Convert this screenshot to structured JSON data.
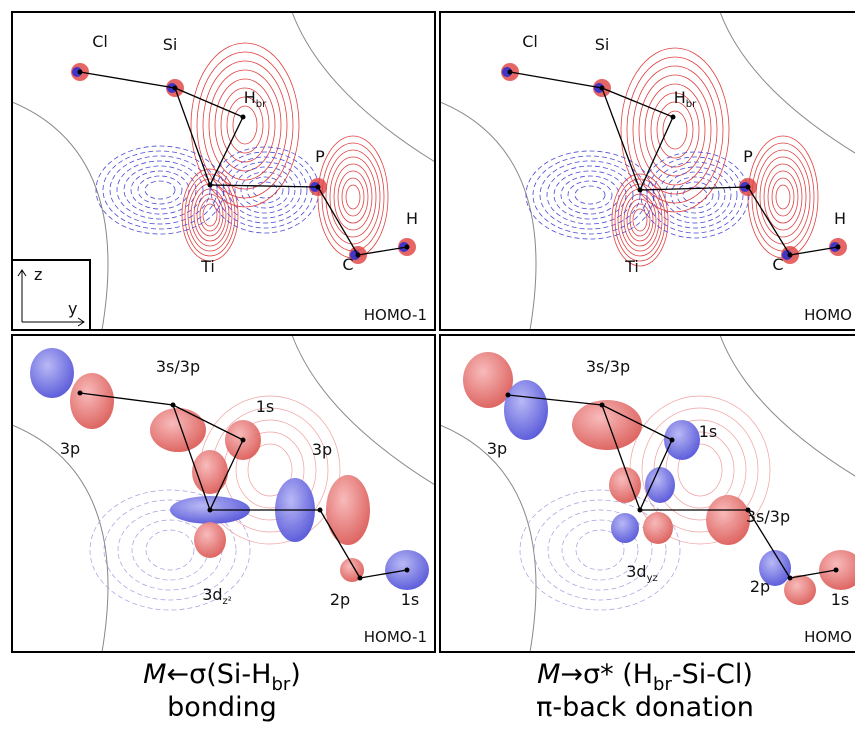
{
  "panels": [
    {
      "labels": [
        {
          "text": "Cl"
        },
        {
          "text": "Si"
        },
        {
          "text": "H",
          "sub": "br"
        },
        {
          "text": "P"
        },
        {
          "text": "H"
        },
        {
          "text": "C"
        },
        {
          "text": "Ti"
        }
      ],
      "orbital": "HOMO-1",
      "axes": [
        "z",
        "y"
      ]
    },
    {
      "labels": [
        {
          "text": "Cl"
        },
        {
          "text": "Si"
        },
        {
          "text": "H",
          "sub": "br"
        },
        {
          "text": "P"
        },
        {
          "text": "H"
        },
        {
          "text": "C"
        },
        {
          "text": "Ti"
        }
      ],
      "orbital": "HOMO"
    },
    {
      "labels": [
        {
          "text": "3s/3p"
        },
        {
          "text": "1s"
        },
        {
          "text": "3p"
        },
        {
          "text": "3p"
        },
        {
          "text": "3d",
          "sub": "z²"
        },
        {
          "text": "2p"
        },
        {
          "text": "1s"
        }
      ],
      "orbital": "HOMO-1"
    },
    {
      "labels": [
        {
          "text": "3s/3p"
        },
        {
          "text": "1s"
        },
        {
          "text": "3p"
        },
        {
          "text": "3s/3p"
        },
        {
          "text": "3d",
          "sub": "yz"
        },
        {
          "text": "2p"
        },
        {
          "text": "1s"
        }
      ],
      "orbital": "HOMO"
    }
  ],
  "captions": [
    {
      "lines": [
        [
          {
            "text": "M",
            "style": "italic"
          },
          {
            "text": "←σ(Si-H"
          },
          {
            "text": "br",
            "style": "sub"
          },
          {
            "text": ")"
          }
        ],
        [
          {
            "text": "bonding"
          }
        ]
      ]
    },
    {
      "lines": [
        [
          {
            "text": "M",
            "style": "italic"
          },
          {
            "text": "→σ* (H"
          },
          {
            "text": "br",
            "style": "sub"
          },
          {
            "text": "-Si-Cl)"
          }
        ],
        [
          {
            "text": "π-back donation"
          }
        ]
      ]
    }
  ]
}
